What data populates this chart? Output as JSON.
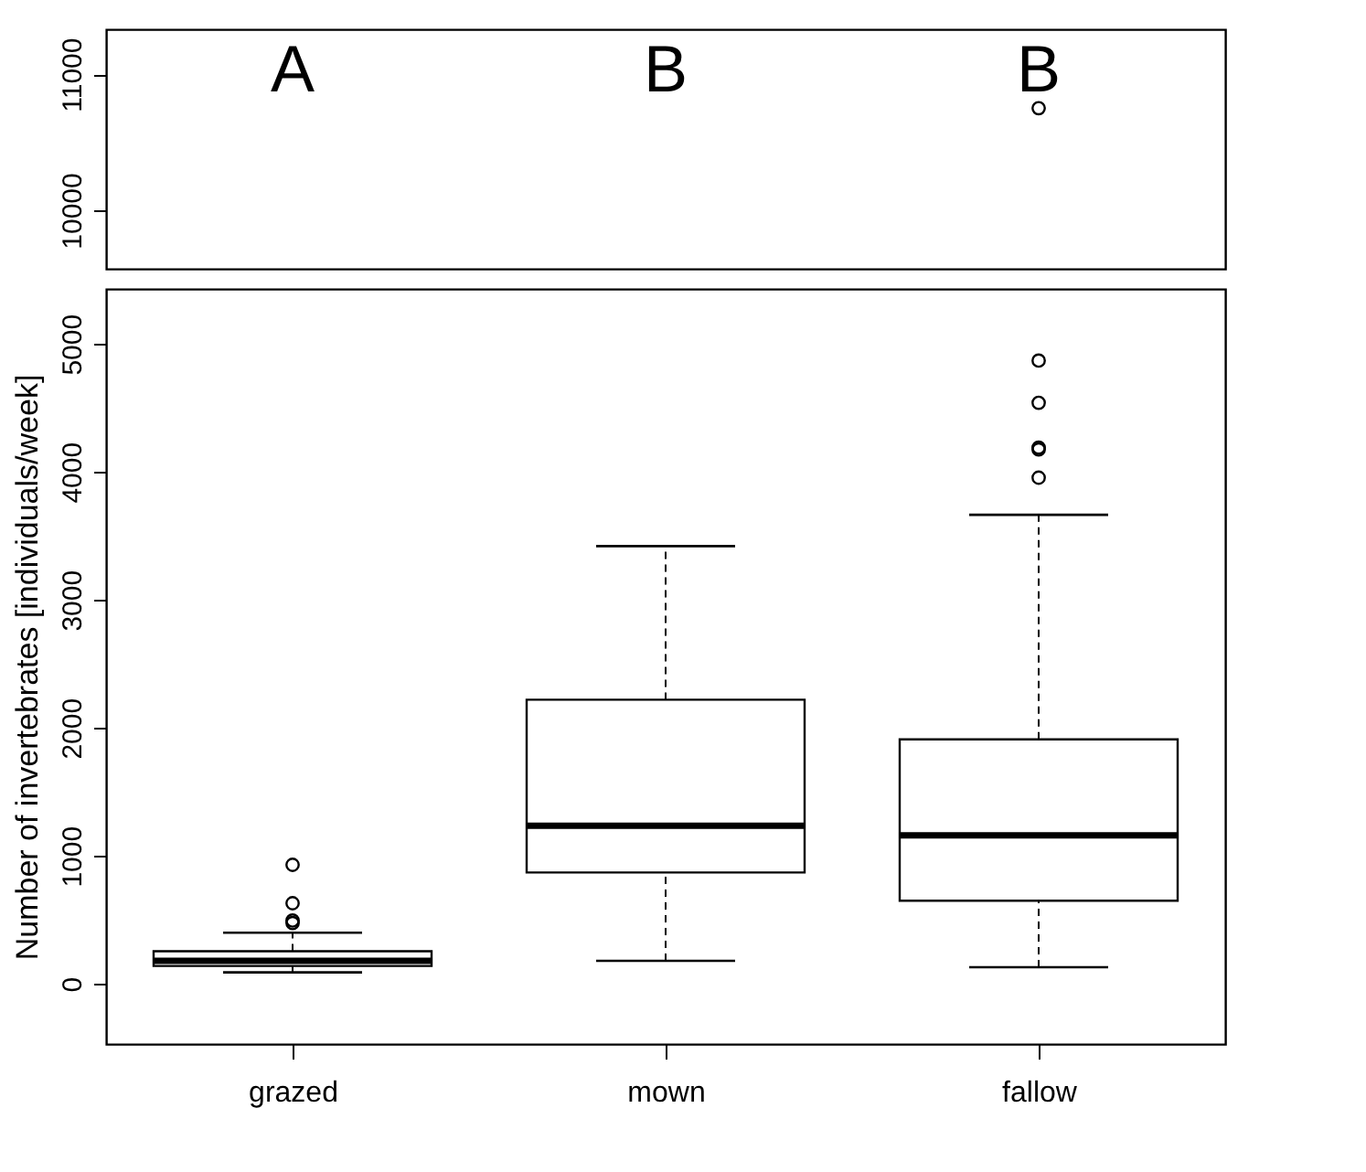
{
  "chart_data": [
    {
      "type": "scatter",
      "categories": [
        "grazed",
        "mown",
        "fallow"
      ],
      "ylim": [
        9570,
        11330
      ],
      "yticks": [
        10000,
        11000
      ],
      "tick_labels": "y",
      "marker": "circle",
      "grid": false,
      "series": [
        {
          "x": [
            "fallow"
          ],
          "values": [
            10750
          ],
          "color": "#000000"
        }
      ],
      "annotations": [
        "A",
        "B",
        "B"
      ]
    },
    {
      "type": "box",
      "categories": [
        "grazed",
        "mown",
        "fallow"
      ],
      "ylim": [
        -470,
        5430
      ],
      "yticks": [
        0,
        1000,
        2000,
        3000,
        4000,
        5000
      ],
      "ylabel": "Number of invertebrates [individuals/week]",
      "grid": false,
      "boxes": [
        {
          "low": 90,
          "q1": 140,
          "median": 180,
          "q3": 255,
          "high": 400,
          "outliers": [
            475,
            495,
            630,
            930
          ]
        },
        {
          "low": 180,
          "q1": 870,
          "median": 1235,
          "q3": 2220,
          "high": 3420
        },
        {
          "low": 130,
          "q1": 650,
          "median": 1160,
          "q3": 1910,
          "high": 3665,
          "outliers": [
            3955,
            4175,
            4190,
            4540,
            4870
          ]
        }
      ]
    }
  ]
}
